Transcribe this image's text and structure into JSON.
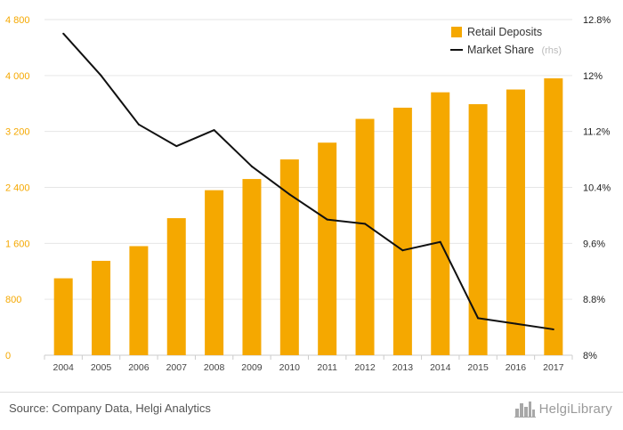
{
  "chart_data": {
    "type": "bar",
    "categories": [
      "2004",
      "2005",
      "2006",
      "2007",
      "2008",
      "2009",
      "2010",
      "2011",
      "2012",
      "2013",
      "2014",
      "2015",
      "2016",
      "2017"
    ],
    "series": [
      {
        "name": "Retail Deposits",
        "type": "bar",
        "axis": "left",
        "color": "#f5a800",
        "values": [
          1100,
          1350,
          1560,
          1960,
          2360,
          2520,
          2800,
          3040,
          3380,
          3540,
          3760,
          3590,
          3800,
          3960
        ]
      },
      {
        "name": "Market Share",
        "legend_suffix": "(rhs)",
        "type": "line",
        "axis": "right",
        "color": "#111111",
        "values": [
          12.6,
          12.0,
          11.3,
          10.99,
          11.22,
          10.7,
          10.3,
          9.94,
          9.88,
          9.5,
          9.62,
          8.53,
          8.45,
          8.37
        ]
      }
    ],
    "yaxis_left": {
      "min": 0,
      "max": 4800,
      "ticks": [
        "0",
        "800",
        "1 600",
        "2 400",
        "3 200",
        "4 000",
        "4 800"
      ]
    },
    "yaxis_right": {
      "min": 8,
      "max": 12.8,
      "ticks": [
        "8%",
        "8.8%",
        "9.6%",
        "10.4%",
        "11.2%",
        "12%",
        "12.8%"
      ]
    },
    "grid": true,
    "legend_position": "top-right"
  },
  "footer": {
    "source": "Source: Company Data, Helgi Analytics",
    "logo": "HelgiLibrary",
    "logo_icon": "city-skyline-icon"
  }
}
